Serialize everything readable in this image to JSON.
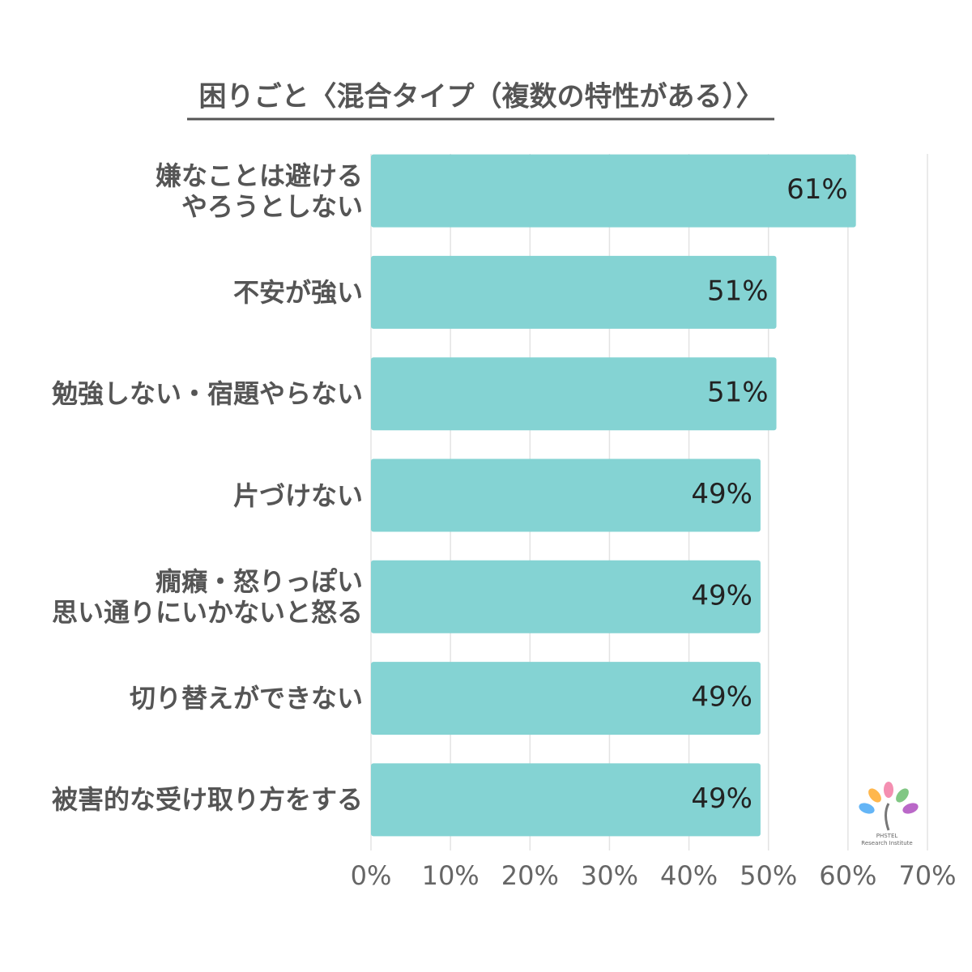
{
  "chart_data": {
    "type": "bar",
    "orientation": "horizontal",
    "title": "困りごと〈混合タイプ（複数の特性がある）〉",
    "categories": [
      "嫌なことは避ける\nやろうとしない",
      "不安が強い",
      "勉強しない・宿題やらない",
      "片づけない",
      "癇癪・怒りっぽい\n思い通りにいかないと怒る",
      "切り替えができない",
      "被害的な受け取り方をする"
    ],
    "values": [
      61,
      51,
      51,
      49,
      49,
      49,
      49
    ],
    "value_labels": [
      "61%",
      "51%",
      "51%",
      "49%",
      "49%",
      "49%",
      "49%"
    ],
    "color": "#84d3d3",
    "xlim": [
      0,
      70
    ],
    "xticks": [
      {
        "value": 0,
        "label": "0%"
      },
      {
        "value": 10,
        "label": "10%"
      },
      {
        "value": 20,
        "label": "20%"
      },
      {
        "value": 30,
        "label": "30%"
      },
      {
        "value": 40,
        "label": "40%"
      },
      {
        "value": 50,
        "label": "50%"
      },
      {
        "value": 60,
        "label": "60%"
      },
      {
        "value": 70,
        "label": "70%"
      }
    ],
    "grid": true,
    "logo": [
      "PHSTEL",
      "Research Institute"
    ]
  }
}
